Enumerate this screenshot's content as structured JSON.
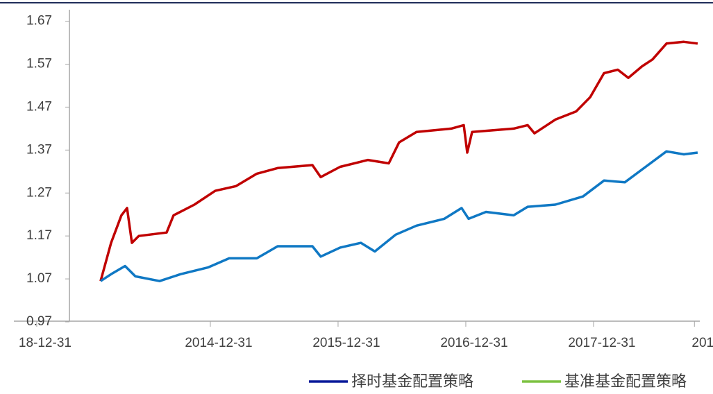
{
  "chart_data": {
    "type": "line",
    "xlim": [
      2013.462,
      2018.832
    ],
    "xticks": [
      {
        "value": 2013.641,
        "label": "18-12-31"
      },
      {
        "value": 2015.0,
        "label": "2014-12-31"
      },
      {
        "value": 2016.0,
        "label": "2015-12-31"
      },
      {
        "value": 2017.0,
        "label": "2016-12-31"
      },
      {
        "value": 2018.0,
        "label": "2017-12-31"
      },
      {
        "value": 2018.79,
        "label": "201"
      }
    ],
    "ylim": [
      0.97,
      1.694
    ],
    "yticks": [
      0.97,
      1.07,
      1.17,
      1.27,
      1.37,
      1.47,
      1.57,
      1.67
    ],
    "series": [
      {
        "name": "择时基金配置策略",
        "color": "#c00000",
        "legend_color": "#0a1a9a",
        "x": [
          2014.141,
          2014.223,
          2014.304,
          2014.348,
          2014.386,
          2014.44,
          2014.658,
          2014.712,
          2014.875,
          2015.038,
          2015.201,
          2015.364,
          2015.527,
          2015.799,
          2015.864,
          2016.016,
          2016.234,
          2016.397,
          2016.478,
          2016.614,
          2016.886,
          2016.984,
          2017.011,
          2017.049,
          2017.375,
          2017.484,
          2017.538,
          2017.701,
          2017.864,
          2017.973,
          2018.082,
          2018.19,
          2018.272,
          2018.38,
          2018.462,
          2018.571,
          2018.707,
          2018.815
        ],
        "values": [
          1.065,
          1.154,
          1.218,
          1.235,
          1.154,
          1.17,
          1.178,
          1.218,
          1.243,
          1.275,
          1.286,
          1.315,
          1.328,
          1.335,
          1.307,
          1.331,
          1.347,
          1.339,
          1.388,
          1.412,
          1.42,
          1.428,
          1.364,
          1.412,
          1.42,
          1.428,
          1.409,
          1.441,
          1.46,
          1.493,
          1.549,
          1.557,
          1.538,
          1.565,
          1.581,
          1.618,
          1.622,
          1.618
        ]
      },
      {
        "name": "基准基金配置策略",
        "color": "#0f78c4",
        "legend_color": "#7dc242",
        "x": [
          2014.141,
          2014.223,
          2014.332,
          2014.413,
          2014.603,
          2014.766,
          2014.984,
          2015.147,
          2015.364,
          2015.527,
          2015.799,
          2015.864,
          2016.016,
          2016.179,
          2016.288,
          2016.451,
          2016.614,
          2016.832,
          2016.967,
          2017.022,
          2017.158,
          2017.375,
          2017.484,
          2017.701,
          2017.918,
          2018.082,
          2018.245,
          2018.408,
          2018.571,
          2018.707,
          2018.815
        ],
        "values": [
          1.065,
          1.081,
          1.1,
          1.076,
          1.065,
          1.081,
          1.097,
          1.118,
          1.118,
          1.146,
          1.146,
          1.122,
          1.143,
          1.154,
          1.134,
          1.173,
          1.194,
          1.21,
          1.235,
          1.21,
          1.226,
          1.218,
          1.238,
          1.243,
          1.262,
          1.299,
          1.295,
          1.331,
          1.367,
          1.36,
          1.364
        ]
      }
    ]
  }
}
